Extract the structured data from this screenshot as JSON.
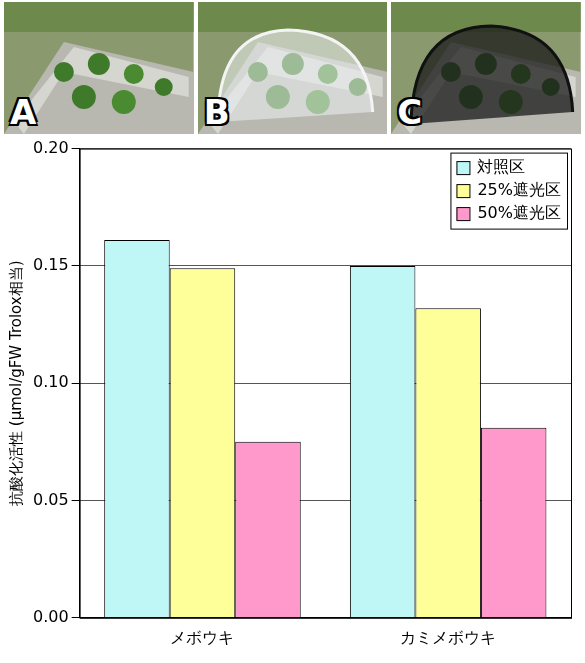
{
  "photo_labels": [
    "A",
    "B",
    "C"
  ],
  "chart_data": {
    "type": "bar",
    "y_label": "抗酸化活性 (μmol/gFW Trolox相当)",
    "categories": [
      "メボウキ",
      "カミメボウキ"
    ],
    "series": [
      {
        "name": "対照区",
        "color": "#bff7f7",
        "values": [
          0.161,
          0.15
        ]
      },
      {
        "name": "25%遮光区",
        "color": "#ffff99",
        "values": [
          0.149,
          0.132
        ]
      },
      {
        "name": "50%遮光区",
        "color": "#ff99cc",
        "values": [
          0.075,
          0.081
        ]
      }
    ],
    "ylim": [
      0,
      0.2
    ],
    "yticks": [
      {
        "value": 0,
        "label": "0.00"
      },
      {
        "value": 0.05,
        "label": "0.05"
      },
      {
        "value": 0.1,
        "label": "0.10"
      },
      {
        "value": 0.15,
        "label": "0.15"
      },
      {
        "value": 0.2,
        "label": "0.20"
      }
    ],
    "grid": true,
    "legend": "top-right"
  }
}
